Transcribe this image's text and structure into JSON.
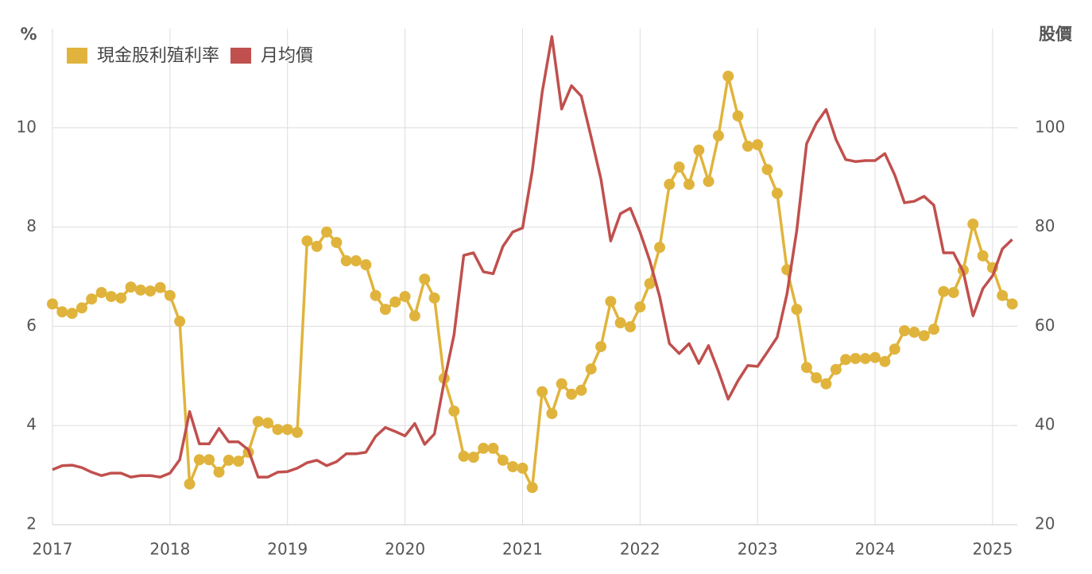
{
  "chart_data": {
    "type": "line",
    "y_label": "%",
    "y2_label": "股價",
    "legend": "top-left",
    "grid": true,
    "x": [
      2017,
      2017.083,
      2017.167,
      2017.25,
      2017.333,
      2017.417,
      2017.5,
      2017.583,
      2017.667,
      2017.75,
      2017.833,
      2017.917,
      2018,
      2018.083,
      2018.167,
      2018.25,
      2018.333,
      2018.417,
      2018.5,
      2018.583,
      2018.667,
      2018.75,
      2018.833,
      2018.917,
      2019,
      2019.083,
      2019.167,
      2019.25,
      2019.333,
      2019.417,
      2019.5,
      2019.583,
      2019.667,
      2019.75,
      2019.833,
      2019.917,
      2020,
      2020.083,
      2020.167,
      2020.25,
      2020.333,
      2020.417,
      2020.5,
      2020.583,
      2020.667,
      2020.75,
      2020.833,
      2020.917,
      2021,
      2021.083,
      2021.167,
      2021.25,
      2021.333,
      2021.417,
      2021.5,
      2021.583,
      2021.667,
      2021.75,
      2021.833,
      2021.917,
      2022,
      2022.083,
      2022.167,
      2022.25,
      2022.333,
      2022.417,
      2022.5,
      2022.583,
      2022.667,
      2022.75,
      2022.833,
      2022.917,
      2023,
      2023.083,
      2023.167,
      2023.25,
      2023.333,
      2023.417,
      2023.5,
      2023.583,
      2023.667,
      2023.75,
      2023.833,
      2023.917,
      2024,
      2024.083,
      2024.167,
      2024.25,
      2024.333,
      2024.417,
      2024.5,
      2024.583,
      2024.667,
      2024.75,
      2024.833,
      2024.917,
      2025,
      2025.083,
      2025.167
    ],
    "xlim": [
      2017,
      2025.21
    ],
    "xticks": [
      2017,
      2018,
      2019,
      2020,
      2021,
      2022,
      2023,
      2024,
      2025
    ],
    "ylim": [
      2,
      12
    ],
    "yticks": [
      2,
      4,
      6,
      8,
      10
    ],
    "y2lim": [
      20,
      120
    ],
    "y2ticks": [
      20,
      40,
      60,
      80,
      100
    ],
    "series": [
      {
        "name": "現金股利殖利率",
        "color": "#e0b43c",
        "markers": true,
        "values": [
          6.45,
          6.29,
          6.26,
          6.37,
          6.55,
          6.68,
          6.6,
          6.57,
          6.79,
          6.73,
          6.71,
          6.78,
          6.62,
          6.1,
          2.82,
          3.31,
          3.31,
          3.06,
          3.3,
          3.28,
          3.46,
          4.08,
          4.05,
          3.92,
          3.92,
          3.86,
          7.72,
          7.61,
          7.9,
          7.69,
          7.32,
          7.32,
          7.24,
          6.62,
          6.34,
          6.49,
          6.6,
          6.21,
          6.95,
          6.57,
          4.95,
          4.29,
          3.38,
          3.36,
          3.54,
          3.54,
          3.3,
          3.17,
          3.14,
          2.75,
          4.68,
          4.24,
          4.84,
          4.63,
          4.71,
          5.14,
          5.59,
          6.5,
          6.07,
          5.99,
          6.39,
          6.86,
          7.59,
          8.86,
          9.21,
          8.86,
          9.55,
          8.92,
          9.84,
          11.04,
          10.24,
          9.63,
          9.66,
          9.16,
          8.68,
          7.14,
          6.34,
          5.17,
          4.96,
          4.84,
          5.13,
          5.33,
          5.35,
          5.35,
          5.37,
          5.29,
          5.54,
          5.91,
          5.88,
          5.81,
          5.94,
          6.7,
          6.68,
          7.13,
          8.06,
          7.42,
          7.18,
          6.62,
          6.45
        ]
      },
      {
        "name": "月均價",
        "color": "#c0504d",
        "axis": "y2",
        "markers": false,
        "values": [
          31.1,
          31.9,
          32.0,
          31.5,
          30.6,
          29.9,
          30.4,
          30.4,
          29.6,
          29.9,
          29.9,
          29.6,
          30.4,
          33.1,
          42.8,
          36.3,
          36.3,
          39.4,
          36.7,
          36.7,
          35.1,
          29.6,
          29.6,
          30.6,
          30.7,
          31.4,
          32.5,
          33.0,
          31.9,
          32.7,
          34.3,
          34.3,
          34.6,
          37.8,
          39.6,
          38.8,
          37.9,
          40.4,
          36.2,
          38.3,
          48.8,
          58.3,
          74.3,
          74.8,
          71.0,
          70.6,
          76.1,
          79.0,
          79.8,
          91.3,
          107.2,
          118.4,
          103.8,
          108.5,
          106.4,
          98.2,
          89.7,
          77.2,
          82.7,
          83.8,
          79.0,
          73.2,
          66.0,
          56.5,
          54.5,
          56.5,
          52.5,
          56.1,
          50.9,
          45.3,
          49.0,
          52.1,
          51.9,
          54.8,
          57.8,
          66.5,
          79.3,
          96.8,
          100.9,
          103.7,
          97.7,
          93.6,
          93.2,
          93.4,
          93.4,
          94.8,
          90.5,
          84.9,
          85.2,
          86.2,
          84.4,
          74.8,
          74.8,
          71.0,
          62.1,
          67.6,
          70.2,
          75.6,
          77.5
        ]
      }
    ]
  }
}
